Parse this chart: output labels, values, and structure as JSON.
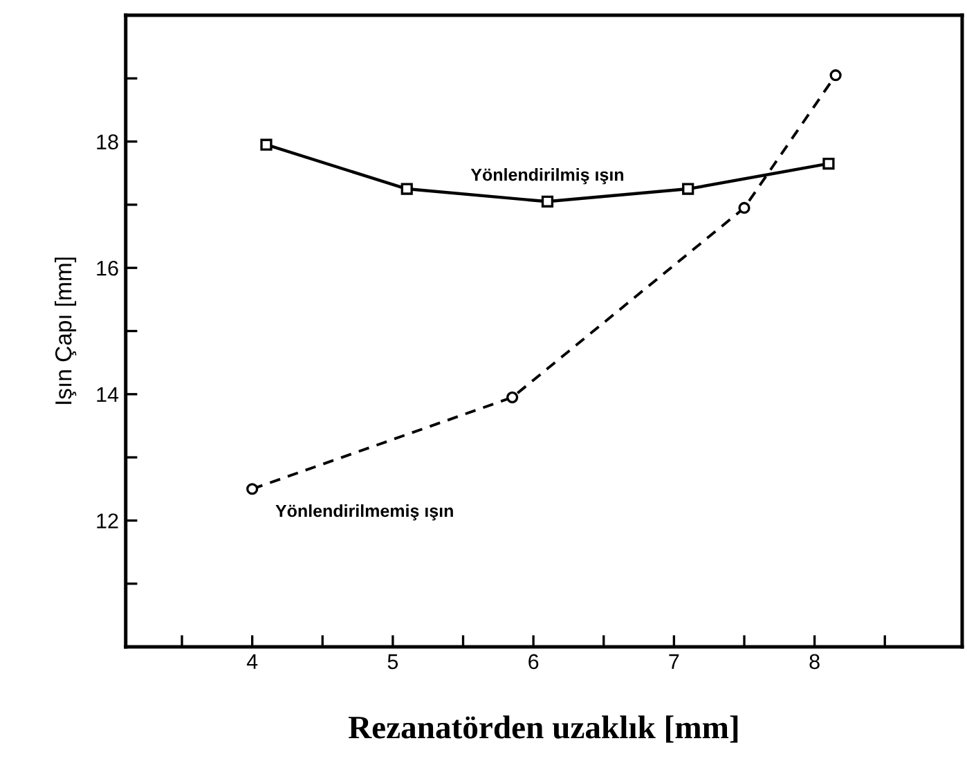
{
  "chart_data": {
    "type": "line",
    "xlabel": "Rezanatörden uzaklık [mm]",
    "ylabel": "Işın Çapı [mm]",
    "xlim": [
      3.1,
      9.05
    ],
    "ylim": [
      10,
      20
    ],
    "xticks": [
      {
        "value": 3.5,
        "label": null
      },
      4,
      {
        "value": 4.5,
        "label": null
      },
      5,
      {
        "value": 5.5,
        "label": null
      },
      6,
      {
        "value": 6.5,
        "label": null
      },
      7,
      {
        "value": 7.5,
        "label": null
      },
      8,
      {
        "value": 8.5,
        "label": null
      }
    ],
    "yticks": [
      {
        "value": 11,
        "label": null
      },
      12,
      {
        "value": 13,
        "label": null
      },
      14,
      {
        "value": 15,
        "label": null
      },
      16,
      {
        "value": 17,
        "label": null
      },
      18,
      {
        "value": 19,
        "label": null
      }
    ],
    "grid": false,
    "legend": false,
    "series": [
      {
        "name": "Yönlendirilmiş ışın",
        "color": "#000000",
        "marker": "square",
        "line_style": "solid",
        "x": [
          4.1,
          5.1,
          6.1,
          7.1,
          8.1
        ],
        "values": [
          17.95,
          17.25,
          17.05,
          17.25,
          17.65
        ]
      },
      {
        "name": "Yönlendirilmemiş ışın",
        "color": "#000000",
        "marker": "circle",
        "line_style": "dashed",
        "x": [
          4.0,
          5.85,
          7.5,
          8.15
        ],
        "values": [
          12.5,
          13.95,
          16.95,
          19.05
        ]
      }
    ]
  }
}
